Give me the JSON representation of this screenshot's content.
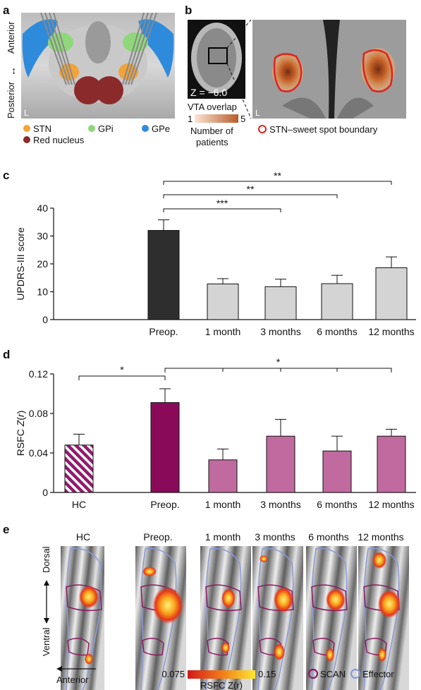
{
  "panel_a": {
    "label": "a",
    "axis_top": "Anterior",
    "axis_bottom": "Posterior",
    "arrow": "↔",
    "corner_mark": "L",
    "legend": [
      {
        "name": "STN",
        "color": "#f2a33a"
      },
      {
        "name": "GPi",
        "color": "#8fd87a"
      },
      {
        "name": "GPe",
        "color": "#2e8bdc"
      },
      {
        "name": "Red nucleus",
        "color": "#8b2a2a"
      }
    ]
  },
  "panel_b": {
    "label": "b",
    "z_label": "Z = −6.0",
    "corner_mark": "L",
    "colorbar_title": "VTA overlap",
    "colorbar_min": "1",
    "colorbar_max": "5",
    "colorbar_caption_1": "Number of",
    "colorbar_caption_2": "patients",
    "boundary_label": "STN–sweet spot boundary",
    "boundary_color": "#e0241c"
  },
  "chart_data": [
    {
      "panel": "c",
      "type": "bar",
      "ylabel": "UPDRS-III score",
      "ylim": [
        0,
        40
      ],
      "yticks": [
        "0",
        "10",
        "20",
        "30",
        "40"
      ],
      "categories": [
        "Preop.",
        "1 month",
        "3 months",
        "6 months",
        "12 months"
      ],
      "values": [
        32,
        12.8,
        11.8,
        12.9,
        18.6
      ],
      "errors": [
        3.8,
        1.9,
        2.7,
        3.0,
        3.9
      ],
      "colors": [
        "#2e2e2e",
        "#d4d4d4",
        "#d4d4d4",
        "#d4d4d4",
        "#d4d4d4"
      ],
      "significance": [
        {
          "from": "Preop.",
          "to": "3 months",
          "label": "***"
        },
        {
          "from": "Preop.",
          "to": "6 months",
          "label": "**"
        },
        {
          "from": "Preop.",
          "to": "12 months",
          "label": "**"
        }
      ]
    },
    {
      "panel": "d",
      "type": "bar",
      "ylabel": "RSFC Z(r)",
      "ylim": [
        0,
        0.12
      ],
      "yticks": [
        "0",
        "0.04",
        "0.08",
        "0.12"
      ],
      "categories": [
        "HC",
        "Preop.",
        "1 month",
        "3 months",
        "6 months",
        "12 months"
      ],
      "values": [
        0.048,
        0.091,
        0.033,
        0.057,
        0.042,
        0.057
      ],
      "errors": [
        0.011,
        0.014,
        0.011,
        0.017,
        0.015,
        0.007
      ],
      "colors": [
        "#8e1c6e",
        "#8a0a5a",
        "#c06aa0",
        "#c06aa0",
        "#c06aa0",
        "#c06aa0"
      ],
      "significance": [
        {
          "from": "HC",
          "to": "Preop.",
          "label": "*"
        },
        {
          "from": "Preop.",
          "to": "12 months",
          "label": "*"
        }
      ]
    }
  ],
  "panel_e": {
    "label": "e",
    "columns": [
      "HC",
      "Preop.",
      "1 month",
      "3 months",
      "6 months",
      "12 months"
    ],
    "axis_top": "Dorsal",
    "axis_bottom": "Ventral",
    "anterior_label": "Anterior",
    "colorbar_min": "0.075",
    "colorbar_max": "0.15",
    "colorbar_title": "RSFC Z(r)",
    "legend": [
      {
        "name": "SCAN",
        "color": "#8a1a5e"
      },
      {
        "name": "Effector",
        "color": "#8a9ad8"
      }
    ]
  }
}
